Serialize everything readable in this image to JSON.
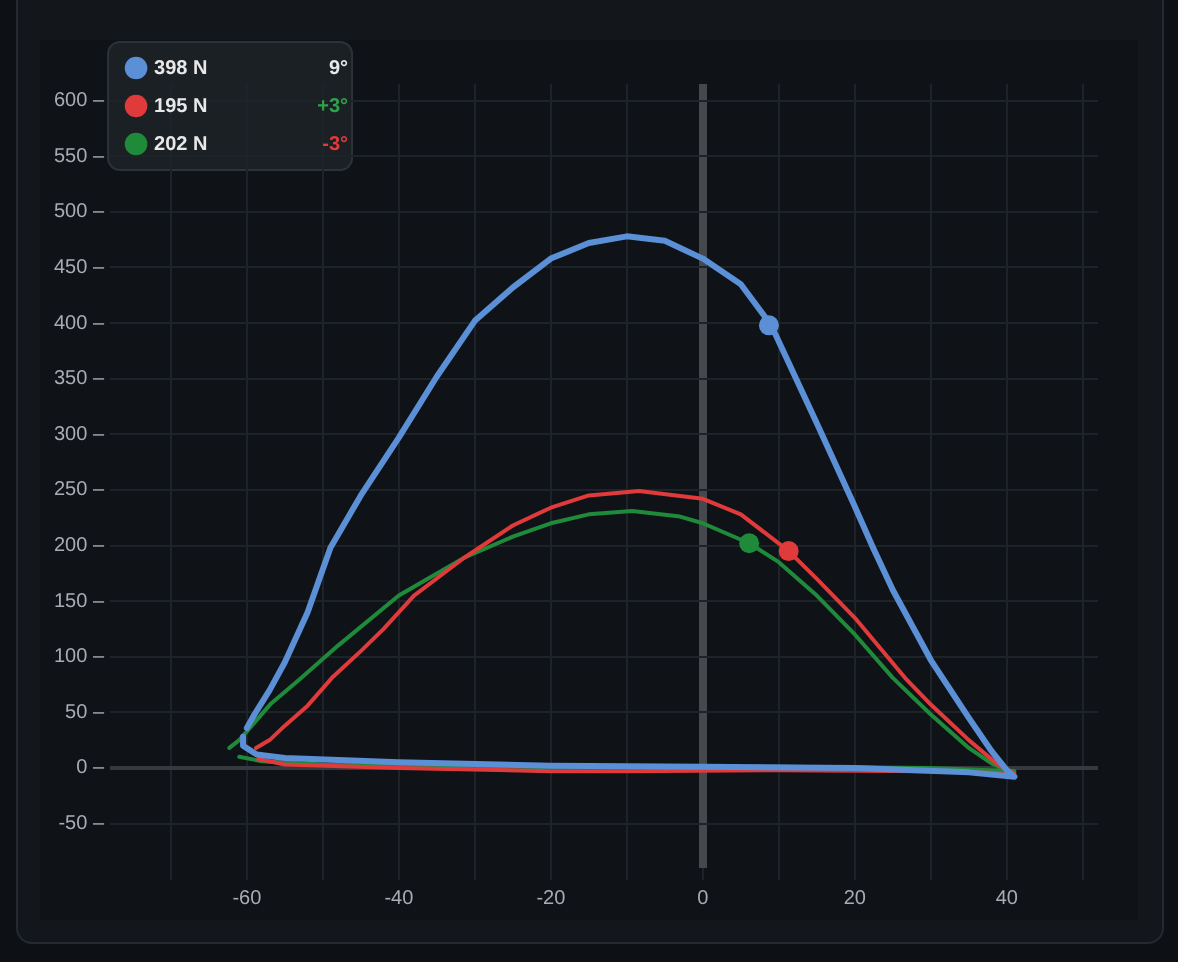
{
  "chart_data": {
    "type": "line",
    "xlim": [
      -78,
      52
    ],
    "ylim": [
      -90,
      615
    ],
    "xticks": [
      {
        "value": -70,
        "label": null
      },
      -60,
      {
        "value": -50,
        "label": null
      },
      -40,
      {
        "value": -30,
        "label": null
      },
      -20,
      {
        "value": -10,
        "label": null
      },
      0,
      {
        "value": 10,
        "label": null
      },
      20,
      {
        "value": 30,
        "label": null
      },
      40,
      {
        "value": 50,
        "label": null
      }
    ],
    "yticks": [
      {
        "value": -50,
        "label": "-50 –"
      },
      {
        "value": 0,
        "label": "0 –"
      },
      {
        "value": 50,
        "label": "50 –"
      },
      {
        "value": 100,
        "label": "100 –"
      },
      {
        "value": 150,
        "label": "150 –"
      },
      {
        "value": 200,
        "label": "200 –"
      },
      {
        "value": 250,
        "label": "250 –"
      },
      {
        "value": 300,
        "label": "300 –"
      },
      {
        "value": 350,
        "label": "350 –"
      },
      {
        "value": 400,
        "label": "400 –"
      },
      {
        "value": 450,
        "label": "450 –"
      },
      {
        "value": 500,
        "label": "500 –"
      },
      {
        "value": 550,
        "label": "550 –"
      },
      {
        "value": 600,
        "label": "600 –"
      }
    ],
    "grid": true,
    "legend": "top left",
    "annotations": [
      "9°",
      "+3°",
      "-3°"
    ],
    "ref_lines": [
      {
        "axis": "x",
        "value": 0,
        "color": "#45484c"
      },
      {
        "axis": "y",
        "value": 0,
        "color": "#36393d"
      }
    ],
    "series": [
      {
        "name": "398 N",
        "color": "#5b8fd6",
        "marker": "none",
        "x": [
          -60,
          -59,
          -57,
          -55,
          -52,
          -49,
          -45,
          -40,
          -35,
          -30,
          -25,
          -20,
          -15,
          -10,
          -5,
          0,
          5,
          9,
          15,
          20,
          22.4,
          25,
          30,
          35,
          38,
          40,
          41,
          35,
          20,
          0,
          -20,
          -40,
          -55,
          -58.7,
          -60.5,
          -60.5
        ],
        "values": [
          36,
          48,
          70,
          95,
          140,
          198,
          245,
          297,
          352,
          402,
          432,
          458,
          472,
          478,
          474,
          458,
          435,
          398,
          310,
          235,
          198,
          160,
          97,
          45,
          15,
          -2,
          -8,
          -4,
          0,
          1,
          2,
          5,
          9,
          12,
          20,
          28
        ]
      },
      {
        "name": "195 N",
        "color": "#e03a3a",
        "marker": "none",
        "x": [
          -58.8,
          -57,
          -55,
          -52,
          -48.8,
          -45,
          -42,
          -38,
          -31.4,
          -25,
          -20,
          -15,
          -8.4,
          0,
          5,
          11.3,
          15,
          20,
          26.6,
          30,
          35,
          39,
          41,
          30,
          10,
          -10,
          -20,
          -40,
          -55,
          -58.5
        ],
        "values": [
          18,
          25,
          38,
          56,
          81,
          105,
          125,
          155,
          189,
          218,
          234,
          245,
          249,
          242,
          228,
          195,
          170,
          135,
          81,
          57,
          25,
          2,
          -5,
          -3,
          -2,
          -3,
          -3,
          0,
          3,
          8
        ]
      },
      {
        "name": "202 N",
        "color": "#1f8a3a",
        "marker": "none",
        "x": [
          -62.3,
          -61,
          -59.6,
          -56.8,
          -53,
          -48,
          -40,
          -31.4,
          -25,
          -20,
          -15,
          -9.3,
          -3,
          0,
          6.1,
          10,
          15,
          20,
          25,
          30,
          35,
          38,
          40,
          41,
          30,
          10,
          -10,
          -30,
          -50,
          -58,
          -61
        ],
        "values": [
          18,
          25,
          36,
          58,
          80,
          110,
          155,
          189,
          208,
          220,
          228,
          231,
          226,
          220,
          202,
          185,
          155,
          120,
          81,
          48,
          18,
          4,
          -2,
          -3,
          0,
          1,
          1,
          1,
          3,
          6,
          10
        ]
      },
      {
        "type": "scatter",
        "color": "#5b8fd6",
        "marker": "circle",
        "x": [
          8.7
        ],
        "values": [
          398
        ]
      },
      {
        "type": "scatter",
        "color": "#e03a3a",
        "marker": "circle",
        "x": [
          11.3
        ],
        "values": [
          195
        ]
      },
      {
        "type": "scatter",
        "color": "#1f8a3a",
        "marker": "circle",
        "x": [
          6.1
        ],
        "values": [
          202
        ]
      }
    ]
  }
}
